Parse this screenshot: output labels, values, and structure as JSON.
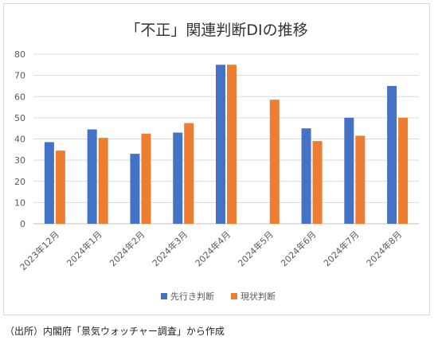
{
  "chart_data": {
    "type": "bar",
    "title": "「不正」関連判断DIの推移",
    "categories": [
      "2023年12月",
      "2024年1月",
      "2024年2月",
      "2024年3月",
      "2024年4月",
      "2024年5月",
      "2024年6月",
      "2024年7月",
      "2024年8月"
    ],
    "series": [
      {
        "name": "先行き判断",
        "color": "#4472c4",
        "values": [
          38.5,
          44.5,
          33,
          43,
          75,
          null,
          45,
          50,
          65
        ]
      },
      {
        "name": "現状判断",
        "color": "#ed7d31",
        "values": [
          34.5,
          40.5,
          42.5,
          47.5,
          75,
          58.5,
          39,
          41.5,
          50
        ]
      }
    ],
    "ylim": [
      0,
      80
    ],
    "yticks": [
      0,
      10,
      20,
      30,
      40,
      50,
      60,
      70,
      80
    ],
    "grid": true,
    "legend_position": "bottom"
  },
  "source_note": "（出所）内閣府「景気ウォッチャー調査」から作成"
}
